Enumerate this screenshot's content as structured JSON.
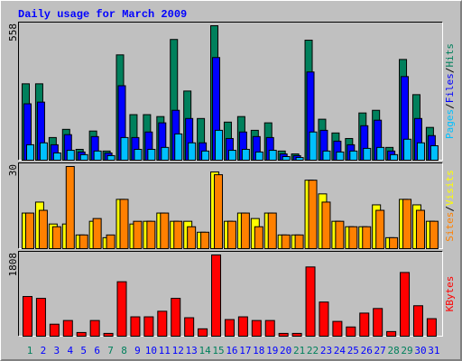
{
  "title": "Daily usage for March 2009",
  "chart_data": [
    {
      "type": "bar",
      "ylim": [
        0,
        558
      ],
      "yticks": [
        558
      ],
      "legend_separator": "/",
      "series": [
        {
          "name": "Hits",
          "color": "#00805c",
          "values": [
            317,
            317,
            94,
            128,
            45,
            121,
            38,
            437,
            189,
            189,
            181,
            501,
            287,
            173,
            558,
            158,
            181,
            124,
            155,
            38,
            26,
            498,
            170,
            113,
            90,
            196,
            207,
            53,
            418,
            272,
            136
          ]
        },
        {
          "name": "Files",
          "color": "#0000ff",
          "values": [
            234,
            241,
            64,
            106,
            34,
            98,
            30,
            309,
            94,
            117,
            155,
            207,
            173,
            72,
            426,
            90,
            117,
            98,
            94,
            26,
            19,
            366,
            124,
            79,
            64,
            143,
            166,
            38,
            347,
            173,
            102
          ]
        },
        {
          "name": "Pages",
          "color": "#00c0ff",
          "values": [
            64,
            72,
            30,
            41,
            23,
            38,
            19,
            94,
            45,
            45,
            53,
            109,
            72,
            38,
            124,
            41,
            45,
            34,
            41,
            15,
            11,
            117,
            38,
            34,
            38,
            49,
            53,
            23,
            87,
            72,
            60
          ]
        }
      ]
    },
    {
      "type": "bar",
      "ylim": [
        0,
        30
      ],
      "yticks": [
        30
      ],
      "legend_separator": "/",
      "series": [
        {
          "name": "Visits",
          "color": "#ffff00",
          "values": [
            13,
            17,
            9,
            9,
            5,
            10,
            4,
            18,
            9,
            10,
            13,
            10,
            10,
            6,
            28,
            10,
            13,
            11,
            13,
            5,
            5,
            25,
            20,
            10,
            8,
            8,
            16,
            4,
            18,
            16,
            10
          ]
        },
        {
          "name": "Sites",
          "color": "#ff8000",
          "values": [
            13,
            14,
            8,
            30,
            5,
            11,
            5,
            18,
            10,
            10,
            13,
            10,
            8,
            6,
            27,
            10,
            13,
            8,
            13,
            5,
            5,
            25,
            17,
            10,
            8,
            8,
            14,
            4,
            18,
            14,
            10
          ]
        }
      ]
    },
    {
      "type": "bar",
      "ylim": [
        0,
        1808
      ],
      "yticks": [
        1808
      ],
      "categories": [
        "1",
        "2",
        "3",
        "4",
        "5",
        "6",
        "7",
        "8",
        "9",
        "10",
        "11",
        "12",
        "13",
        "14",
        "15",
        "16",
        "17",
        "18",
        "19",
        "20",
        "21",
        "22",
        "23",
        "24",
        "25",
        "26",
        "27",
        "28",
        "29",
        "30",
        "31"
      ],
      "category_colors": [
        "#00805c",
        "#0000ff",
        "#0000ff",
        "#0000ff",
        "#0000ff",
        "#0000ff",
        "#00805c",
        "#00805c",
        "#0000ff",
        "#0000ff",
        "#0000ff",
        "#0000ff",
        "#0000ff",
        "#00805c",
        "#00805c",
        "#0000ff",
        "#0000ff",
        "#0000ff",
        "#0000ff",
        "#0000ff",
        "#00805c",
        "#00805c",
        "#0000ff",
        "#0000ff",
        "#0000ff",
        "#0000ff",
        "#0000ff",
        "#00805c",
        "#00805c",
        "#0000ff",
        "#0000ff"
      ],
      "series": [
        {
          "name": "KBytes",
          "color": "#ff0000",
          "values": [
            883,
            842,
            267,
            349,
            82,
            349,
            62,
            1212,
            431,
            431,
            555,
            842,
            411,
            164,
            1808,
            370,
            431,
            349,
            349,
            62,
            62,
            1541,
            760,
            329,
            205,
            514,
            616,
            103,
            1418,
            678,
            390
          ]
        }
      ]
    }
  ]
}
